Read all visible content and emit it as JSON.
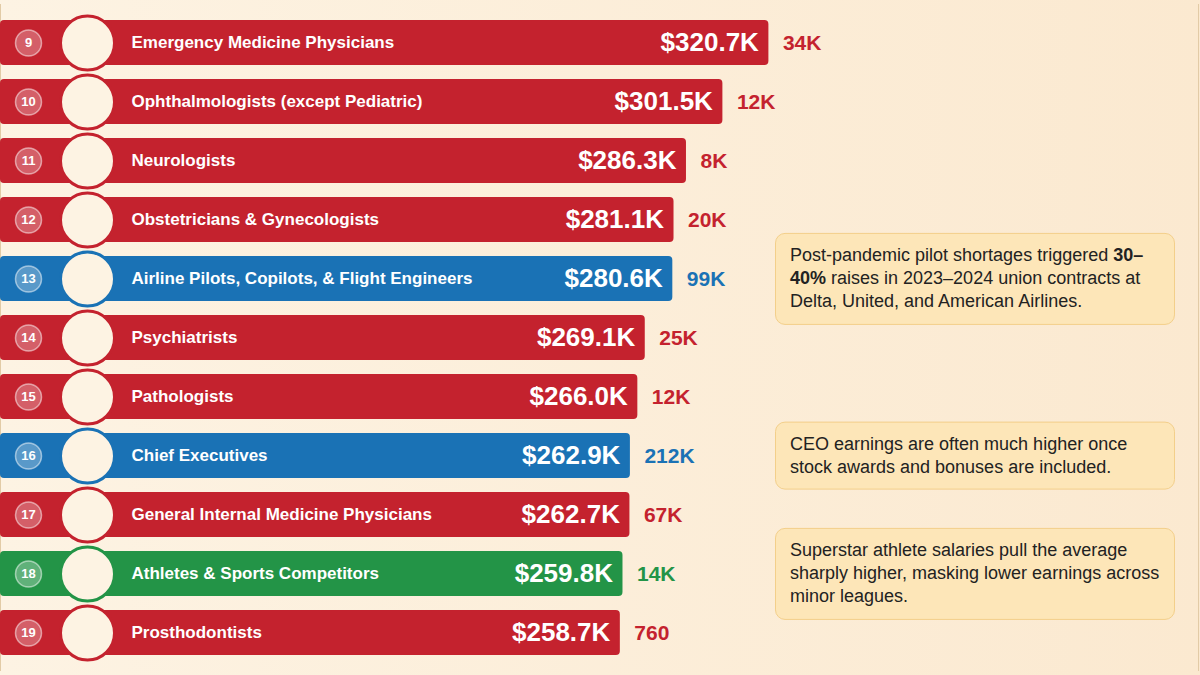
{
  "chart_data": {
    "type": "bar",
    "orientation": "horizontal",
    "ranks": [
      9,
      10,
      11,
      12,
      13,
      14,
      15,
      16,
      17,
      18,
      19
    ],
    "categories": [
      "Emergency Medicine Physicians",
      "Ophthalmologists (except Pediatric)",
      "Neurologists",
      "Obstetricians & Gynecologists",
      "Airline Pilots, Copilots, & Flight Engineers",
      "Psychiatrists",
      "Pathologists",
      "Chief Executives",
      "General Internal Medicine Physicians",
      "Athletes & Sports Competitors",
      "Prosthodontists"
    ],
    "values": [
      320.7,
      301.5,
      286.3,
      281.1,
      280.6,
      269.1,
      266.0,
      262.9,
      262.7,
      259.8,
      258.7
    ],
    "value_labels": [
      "$320.7K",
      "$301.5K",
      "$286.3K",
      "$281.1K",
      "$280.6K",
      "$269.1K",
      "$266.0K",
      "$262.9K",
      "$262.7K",
      "$259.8K",
      "$258.7K"
    ],
    "employment_labels": [
      "34K",
      "12K",
      "8K",
      "20K",
      "99K",
      "25K",
      "12K",
      "212K",
      "67K",
      "14K",
      "760"
    ],
    "colors": [
      "#c4222e",
      "#c4222e",
      "#c4222e",
      "#c4222e",
      "#1a72b5",
      "#c4222e",
      "#c4222e",
      "#1a72b5",
      "#c4222e",
      "#239447",
      "#c4222e"
    ],
    "xlim": [
      0,
      500
    ],
    "xticks": [],
    "tick_labels": false,
    "data_labels": true,
    "annotations": [
      {
        "category": "Airline Pilots, Copilots, & Flight Engineers",
        "text": "Post-pandemic pilot shortages triggered 30–40% raises in 2023–2024 union contracts at Delta, United, and American Airlines.",
        "emphasis": "30–40%"
      },
      {
        "category": "Chief Executives",
        "text": "CEO earnings are often much higher once stock awards and bonuses are included."
      },
      {
        "category": "Athletes & Sports Competitors",
        "text": "Superstar athlete salaries pull the average sharply higher, masking lower earnings across minor leagues."
      }
    ]
  }
}
